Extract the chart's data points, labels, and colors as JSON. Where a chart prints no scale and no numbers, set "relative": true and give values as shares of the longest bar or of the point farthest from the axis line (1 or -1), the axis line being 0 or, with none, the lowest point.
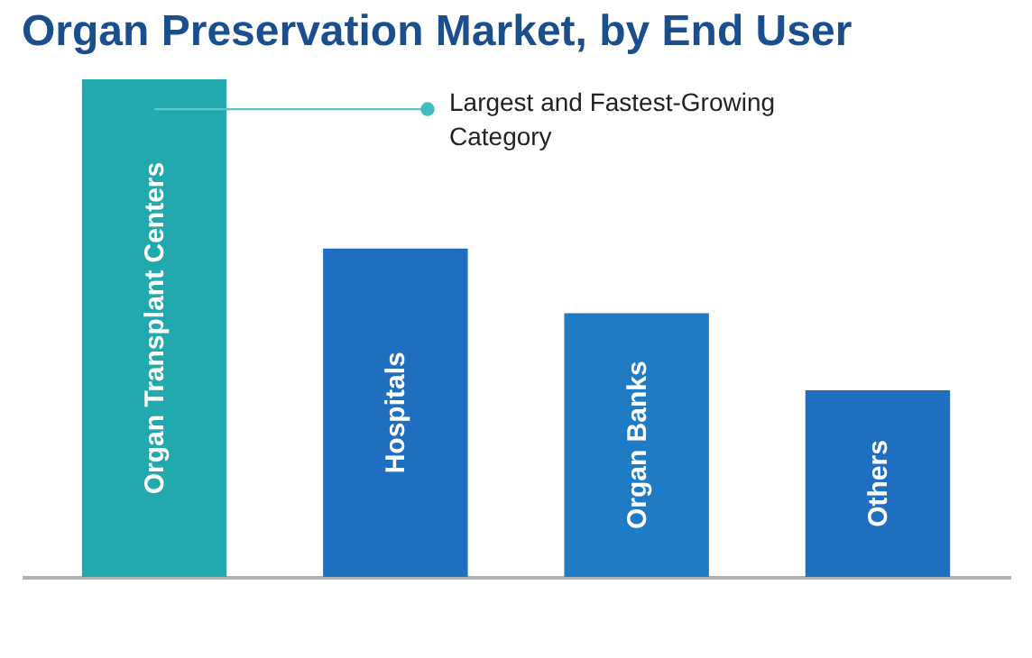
{
  "chart_data": {
    "type": "bar",
    "title": "Organ Preservation Market, by End User",
    "relative": true,
    "categories": [
      "Organ Transplant Centers",
      "Hospitals",
      "Organ Banks",
      "Others"
    ],
    "values": [
      1,
      0.66,
      0.53,
      0.375
    ],
    "colors": [
      "#22a9ae",
      "#1f6ec0",
      "#1f7cc4",
      "#1f6ec0"
    ],
    "annotations": [
      "Largest and Fastest-Growing Category"
    ]
  }
}
